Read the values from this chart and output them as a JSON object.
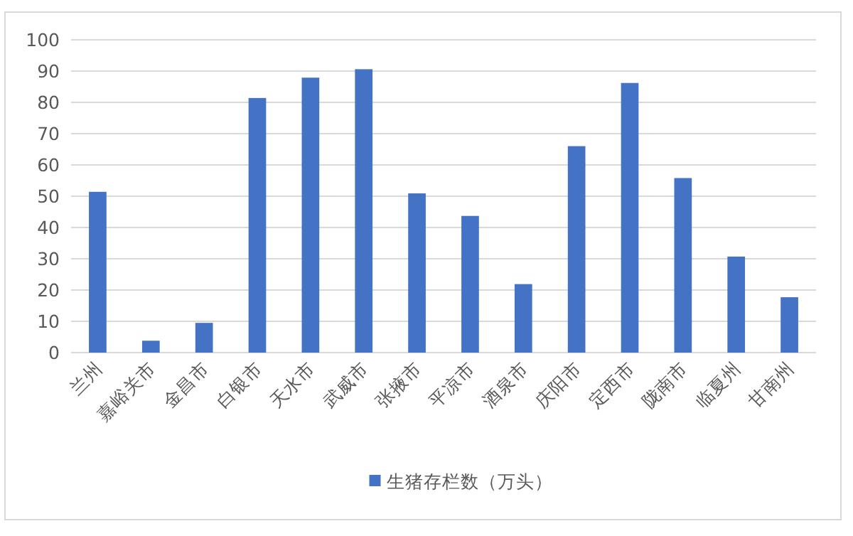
{
  "chart_data": {
    "type": "bar",
    "categories": [
      "兰州",
      "嘉峪关市",
      "金昌市",
      "白银市",
      "天水市",
      "武威市",
      "张掖市",
      "平凉市",
      "酒泉市",
      "庆阳市",
      "定西市",
      "陇南市",
      "临夏州",
      "甘南州"
    ],
    "series": [
      {
        "name": "生猪存栏数（万头）",
        "color": "#4472c4",
        "values": [
          51.4,
          3.8,
          9.5,
          81.4,
          87.9,
          90.6,
          50.9,
          43.7,
          21.9,
          66,
          86.2,
          55.8,
          30.7,
          17.7
        ]
      }
    ],
    "ylim": [
      0,
      100
    ],
    "yticks": [
      0,
      10,
      20,
      30,
      40,
      50,
      60,
      70,
      80,
      90,
      100
    ],
    "grid": "y",
    "legend": "bottom"
  }
}
